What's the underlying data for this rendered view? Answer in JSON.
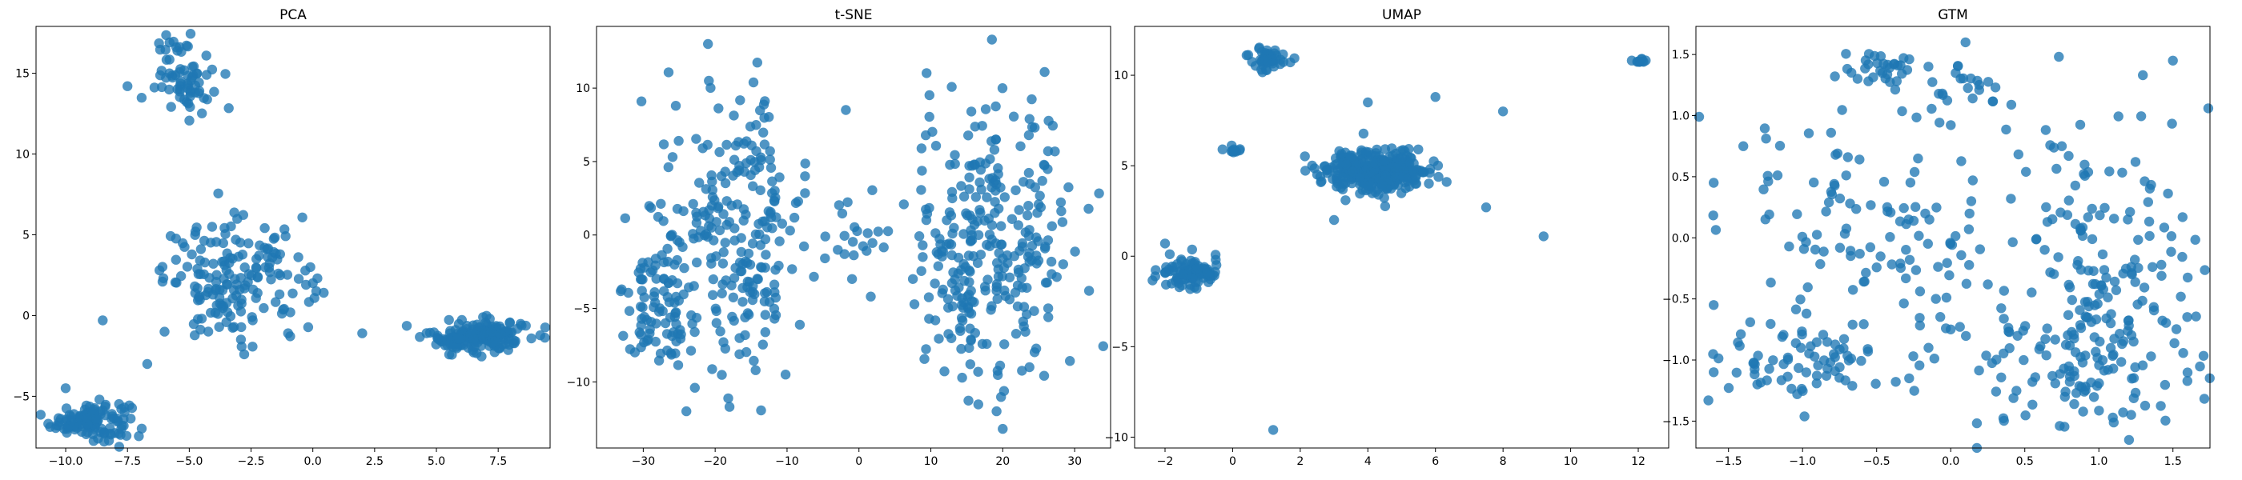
{
  "chart_data": [
    {
      "type": "scatter",
      "title": "PCA",
      "xlabel": "",
      "ylabel": "",
      "xlim": [
        -11.2,
        9.6
      ],
      "ylim": [
        -8.2,
        17.9
      ],
      "xticks": [
        -10.0,
        -7.5,
        -5.0,
        -2.5,
        0.0,
        2.5,
        5.0,
        7.5
      ],
      "xticklabels": [
        "−10.0",
        "−7.5",
        "−5.0",
        "−2.5",
        "0.0",
        "2.5",
        "5.0",
        "7.5"
      ],
      "yticks": [
        -5,
        0,
        5,
        10,
        15
      ],
      "yticklabels": [
        "−5",
        "0",
        "5",
        "10",
        "15"
      ],
      "grid": false,
      "color": "#1f77b4",
      "clusters": [
        {
          "cx": -9.0,
          "cy": -6.5,
          "sx": 0.8,
          "sy": 0.6,
          "n": 130
        },
        {
          "cx": -3.0,
          "cy": 2.2,
          "sx": 1.5,
          "sy": 1.8,
          "n": 170
        },
        {
          "cx": -5.2,
          "cy": 15.0,
          "sx": 0.6,
          "sy": 1.2,
          "n": 70
        },
        {
          "cx": 6.7,
          "cy": -1.3,
          "sx": 1.0,
          "sy": 0.5,
          "n": 180
        }
      ],
      "points": [
        [
          -7.5,
          14.2
        ],
        [
          -8.5,
          -0.3
        ],
        [
          -4.3,
          14.9
        ],
        [
          -1.0,
          -1.1
        ],
        [
          2.0,
          -1.1
        ],
        [
          -0.1,
          3.0
        ],
        [
          0.0,
          2.0
        ],
        [
          -6.0,
          -1.0
        ],
        [
          -10.0,
          -4.5
        ],
        [
          -6.7,
          -3.0
        ]
      ]
    },
    {
      "type": "scatter",
      "title": "t-SNE",
      "xlabel": "",
      "ylabel": "",
      "xlim": [
        -36.5,
        35.0
      ],
      "ylim": [
        -14.5,
        14.2
      ],
      "xticks": [
        -30,
        -20,
        -10,
        0,
        10,
        20,
        30
      ],
      "xticklabels": [
        "−30",
        "−20",
        "−10",
        "0",
        "10",
        "20",
        "30"
      ],
      "yticks": [
        -10,
        -5,
        0,
        5,
        10
      ],
      "yticklabels": [
        "−10",
        "−5",
        "0",
        "5",
        "10"
      ],
      "grid": false,
      "color": "#1f77b4",
      "clusters": [
        {
          "cx": -17.0,
          "cy": 0.5,
          "sx": 5.0,
          "sy": 4.8,
          "n": 230
        },
        {
          "cx": -28.0,
          "cy": -4.5,
          "sx": 2.6,
          "sy": 2.8,
          "n": 90
        },
        {
          "cx": 18.0,
          "cy": -1.0,
          "sx": 5.8,
          "sy": 4.8,
          "n": 300
        },
        {
          "cx": -0.5,
          "cy": -0.3,
          "sx": 2.0,
          "sy": 1.6,
          "n": 18
        }
      ],
      "points": [
        [
          -21.0,
          13.0
        ],
        [
          -24.0,
          -12.0
        ],
        [
          -18.0,
          -11.7
        ],
        [
          18.5,
          13.3
        ],
        [
          20.0,
          -13.2
        ],
        [
          -33.0,
          -3.7
        ],
        [
          32.0,
          -3.8
        ],
        [
          -7.5,
          4.0
        ],
        [
          7.5,
          -3.0
        ],
        [
          -10.2,
          -9.5
        ]
      ]
    },
    {
      "type": "scatter",
      "title": "UMAP",
      "xlabel": "",
      "ylabel": "",
      "xlim": [
        -2.9,
        12.9
      ],
      "ylim": [
        -10.6,
        12.7
      ],
      "xticks": [
        -2,
        0,
        2,
        4,
        6,
        8,
        10,
        12
      ],
      "xticklabels": [
        "−2",
        "0",
        "2",
        "4",
        "6",
        "8",
        "10",
        "12"
      ],
      "yticks": [
        -10,
        -5,
        0,
        5,
        10
      ],
      "yticklabels": [
        "−10",
        "−5",
        "0",
        "5",
        "10"
      ],
      "grid": false,
      "color": "#1f77b4",
      "clusters": [
        {
          "cx": 4.3,
          "cy": 4.7,
          "sx": 0.8,
          "sy": 0.6,
          "n": 320
        },
        {
          "cx": -1.3,
          "cy": -0.9,
          "sx": 0.45,
          "sy": 0.4,
          "n": 90
        },
        {
          "cx": 1.1,
          "cy": 10.9,
          "sx": 0.25,
          "sy": 0.3,
          "n": 45
        },
        {
          "cx": 0.0,
          "cy": 5.9,
          "sx": 0.15,
          "sy": 0.1,
          "n": 10
        },
        {
          "cx": 12.1,
          "cy": 10.8,
          "sx": 0.1,
          "sy": 0.08,
          "n": 10
        }
      ],
      "points": [
        [
          1.2,
          -9.6
        ],
        [
          9.2,
          1.1
        ],
        [
          8.0,
          8.0
        ],
        [
          6.0,
          8.8
        ],
        [
          4.0,
          8.5
        ],
        [
          -0.5,
          -0.2
        ],
        [
          -2.0,
          0.7
        ],
        [
          7.5,
          2.7
        ],
        [
          3.0,
          2.0
        ],
        [
          0.0,
          5.8
        ]
      ]
    },
    {
      "type": "scatter",
      "title": "GTM",
      "xlabel": "",
      "ylabel": "",
      "xlim": [
        -1.72,
        1.75
      ],
      "ylim": [
        -1.72,
        1.73
      ],
      "xticks": [
        -1.5,
        -1.0,
        -0.5,
        0.0,
        0.5,
        1.0,
        1.5
      ],
      "xticklabels": [
        "−1.5",
        "−1.0",
        "−0.5",
        "0.0",
        "0.5",
        "1.0",
        "1.5"
      ],
      "yticks": [
        -1.5,
        -1.0,
        -0.5,
        0.0,
        0.5,
        1.0,
        1.5
      ],
      "yticklabels": [
        "−1.5",
        "−1.0",
        "−0.5",
        "0.0",
        "0.5",
        "1.0",
        "1.5"
      ],
      "grid": false,
      "color": "#1f77b4",
      "clusters": [
        {
          "cx": -0.95,
          "cy": -1.0,
          "sx": 0.3,
          "sy": 0.18,
          "n": 70
        },
        {
          "cx": 0.95,
          "cy": -1.0,
          "sx": 0.45,
          "sy": 0.35,
          "n": 140
        },
        {
          "cx": 1.1,
          "cy": 0.0,
          "sx": 0.35,
          "sy": 0.5,
          "n": 100
        },
        {
          "cx": -0.45,
          "cy": 1.4,
          "sx": 0.15,
          "sy": 0.08,
          "n": 30
        },
        {
          "cx": 0.1,
          "cy": 1.2,
          "sx": 0.12,
          "sy": 0.1,
          "n": 20
        },
        {
          "cx": -0.5,
          "cy": 0.1,
          "sx": 0.6,
          "sy": 0.6,
          "n": 140
        }
      ],
      "points": [
        [
          -1.6,
          0.45
        ],
        [
          -1.6,
          -0.55
        ],
        [
          -1.6,
          -1.1
        ],
        [
          0.1,
          1.6
        ],
        [
          1.5,
          1.45
        ],
        [
          -0.1,
          -0.5
        ],
        [
          0.0,
          -0.75
        ],
        [
          -0.15,
          -0.9
        ],
        [
          0.75,
          0.75
        ],
        [
          -1.4,
          0.75
        ]
      ]
    }
  ]
}
